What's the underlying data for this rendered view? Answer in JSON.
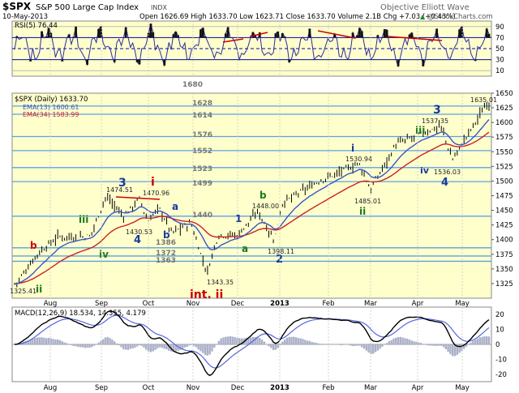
{
  "header": {
    "symbol": "$SPX",
    "name": "S&P 500 Large Cap Index",
    "exchange": "INDX",
    "date": "10-May-2013",
    "ohlc": "Open 1626.69  High 1633.70  Low 1623.71  Close 1633.70  Volume 2.1B  Chg +7.03 (+0.43%)",
    "watermark": "Objective Elliott Wave",
    "copyright": "@StockCharts.com",
    "change_up_glyph": "▲"
  },
  "rsi": {
    "label": "RSI(5) 76.44",
    "range": [
      0,
      100
    ],
    "ticks": [
      "90",
      "70",
      "50",
      "30",
      "10"
    ],
    "levels": [
      90,
      70,
      50,
      30,
      10
    ]
  },
  "price": {
    "label": "$SPX (Daily) 1633.70",
    "ema13_label": "EMA(13) 1600.61",
    "ema34_label": "EMA(34) 1583.99",
    "range": [
      1300,
      1650
    ],
    "ticks": [
      "1650",
      "1625",
      "1600",
      "1575",
      "1550",
      "1525",
      "1500",
      "1475",
      "1450",
      "1425",
      "1400",
      "1375",
      "1350",
      "1325"
    ],
    "support_levels": [
      "1680",
      "1628",
      "1614",
      "1576",
      "1552",
      "1523",
      "1499",
      "1440",
      "1386",
      "1372",
      "1363"
    ],
    "price_labels": [
      "1325.41",
      "1474.51",
      "1470.96",
      "1430.53",
      "1343.35",
      "1448.00",
      "1398.11",
      "1530.94",
      "1485.01",
      "1537.35",
      "1536.03",
      "1635.01"
    ],
    "wave_labels": [
      "b",
      "ii",
      "iii",
      "iv",
      "3",
      "4",
      "i",
      "a",
      "b",
      "int. ii",
      "1",
      "a",
      "b",
      "2",
      "i",
      "ii",
      "iii",
      "iv",
      "3",
      "4"
    ],
    "colors": {
      "price_bar": "#000000",
      "ema13": "#3a55c8",
      "ema34": "#cc2222",
      "support": "#5aa0e6",
      "wave": "#1a3a9e",
      "wave_red": "#cc0000",
      "wave_green": "#1e7a1e",
      "panel_bg": "#ffffcc"
    }
  },
  "macd": {
    "label": "MACD(12,26,9) 18.534, 14.355, 4.179",
    "range": [
      -25,
      25
    ],
    "ticks": [
      "20",
      "10",
      "0",
      "-10",
      "-20"
    ]
  },
  "months": [
    "Aug",
    "Sep",
    "Oct",
    "Nov",
    "Dec",
    "2013",
    "Feb",
    "Mar",
    "Apr",
    "May"
  ],
  "chart_data": [
    {
      "type": "line",
      "title": "$SPX (Daily) 1633.70",
      "x": [
        "2012-07-20",
        "2012-08-02",
        "2012-08-15",
        "2012-09-04",
        "2012-09-14",
        "2012-09-25",
        "2012-10-05",
        "2012-10-10",
        "2012-10-17",
        "2012-10-25",
        "2012-11-06",
        "2012-11-16",
        "2012-11-23",
        "2012-12-05",
        "2012-12-18",
        "2012-12-28",
        "2013-01-02",
        "2013-01-25",
        "2013-02-19",
        "2013-02-26",
        "2013-03-14",
        "2013-04-11",
        "2013-04-18",
        "2013-05-10"
      ],
      "series": [
        {
          "name": "$SPX",
          "values": [
            1325,
            1375,
            1405,
            1405,
            1474,
            1440,
            1470,
            1430,
            1455,
            1412,
            1428,
            1343,
            1408,
            1408,
            1448,
            1398,
            1462,
            1500,
            1530,
            1485,
            1563,
            1594,
            1536,
            1634
          ]
        }
      ],
      "ylim": [
        1300,
        1650
      ]
    },
    {
      "type": "line",
      "title": "RSI(5) 76.44",
      "ylim": [
        0,
        100
      ],
      "levels": [
        30,
        50,
        70
      ]
    },
    {
      "type": "line",
      "title": "MACD(12,26,9) 18.534, 14.355, 4.179",
      "ylim": [
        -25,
        25
      ],
      "values": {
        "macd": 18.534,
        "signal": 14.355,
        "histogram": 4.179
      }
    }
  ]
}
